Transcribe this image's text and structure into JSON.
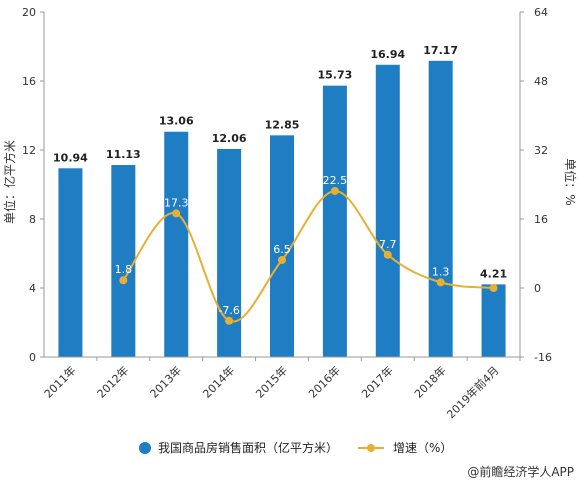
{
  "chart_data": {
    "type": "bar",
    "categories": [
      "2011年",
      "2012年",
      "2013年",
      "2014年",
      "2015年",
      "2016年",
      "2017年",
      "2018年",
      "2019年前4月"
    ],
    "series": [
      {
        "name": "我国商品房销售面积（亿平方米）",
        "type": "bar",
        "axis": "left",
        "color": "#1f7dc4",
        "values": [
          10.94,
          11.13,
          13.06,
          12.06,
          12.85,
          15.73,
          16.94,
          17.17,
          4.21
        ],
        "labels": [
          "10.94",
          "11.13",
          "13.06",
          "12.06",
          "12.85",
          "15.73",
          "16.94",
          "17.17",
          "4.21"
        ]
      },
      {
        "name": "增速（%）",
        "type": "line",
        "axis": "right",
        "color": "#e8b032",
        "values": [
          null,
          1.8,
          17.3,
          -7.6,
          6.5,
          22.5,
          7.7,
          1.3,
          0
        ],
        "labels": [
          "",
          "1.8",
          "17.3",
          "-7.6",
          "6.5",
          "22.5",
          "7.7",
          "1.3",
          ""
        ]
      }
    ],
    "ylabel_left": "单位：亿平方米",
    "ylabel_right": "单位：%",
    "ylim_left": [
      0,
      20
    ],
    "yticks_left": [
      0,
      4,
      8,
      12,
      16,
      20
    ],
    "ylim_right": [
      -16,
      64
    ],
    "yticks_right": [
      -16,
      0,
      16,
      32,
      48,
      64
    ],
    "grid": false,
    "legend_position": "bottom"
  },
  "credit": "@前瞻经济学人APP"
}
